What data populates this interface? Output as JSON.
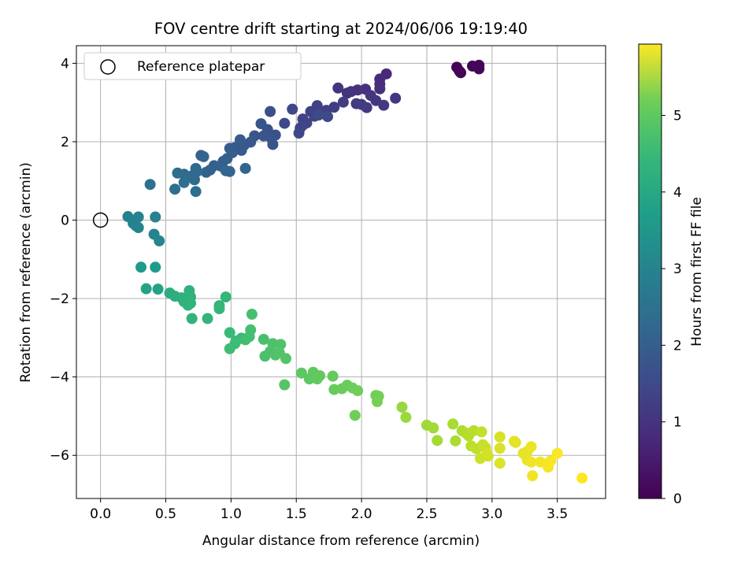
{
  "chart_data": {
    "type": "scatter",
    "title": "FOV centre drift starting at 2024/06/06 19:19:40",
    "xlabel": "Angular distance from reference (arcmin)",
    "ylabel": "Rotation from reference (arcmin)",
    "colorbar_label": "Hours from first FF file",
    "xlim": [
      -0.185,
      3.87
    ],
    "ylim": [
      -7.1,
      4.45
    ],
    "xticks": [
      "0.0",
      "0.5",
      "1.0",
      "1.5",
      "2.0",
      "2.5",
      "3.0",
      "3.5"
    ],
    "yticks": [
      "−6",
      "−4",
      "−2",
      "0",
      "2",
      "4"
    ],
    "colorbar_range": [
      0,
      5.93
    ],
    "colorbar_ticks": [
      "0",
      "1",
      "2",
      "3",
      "4",
      "5"
    ],
    "colormap": "viridis",
    "grid": true,
    "legend": {
      "position": "top-left",
      "label": "Reference platepar"
    },
    "reference_point": {
      "x": 0.0,
      "y": 0.0
    },
    "points": [
      {
        "x": 2.73,
        "y": 3.9,
        "t": 0.05
      },
      {
        "x": 2.75,
        "y": 3.8,
        "t": 0.06
      },
      {
        "x": 2.76,
        "y": 3.76,
        "t": 0.07
      },
      {
        "x": 2.85,
        "y": 3.93,
        "t": 0.08
      },
      {
        "x": 2.9,
        "y": 3.95,
        "t": 0.09
      },
      {
        "x": 2.9,
        "y": 3.86,
        "t": 0.1
      },
      {
        "x": 2.19,
        "y": 3.73,
        "t": 0.7
      },
      {
        "x": 2.14,
        "y": 3.6,
        "t": 0.72
      },
      {
        "x": 2.14,
        "y": 3.47,
        "t": 0.75
      },
      {
        "x": 2.14,
        "y": 3.35,
        "t": 0.8
      },
      {
        "x": 2.03,
        "y": 3.34,
        "t": 0.82
      },
      {
        "x": 1.97,
        "y": 3.32,
        "t": 0.85
      },
      {
        "x": 1.92,
        "y": 3.28,
        "t": 0.88
      },
      {
        "x": 1.89,
        "y": 3.24,
        "t": 0.9
      },
      {
        "x": 1.82,
        "y": 3.37,
        "t": 0.92
      },
      {
        "x": 2.07,
        "y": 3.18,
        "t": 0.94
      },
      {
        "x": 2.11,
        "y": 3.05,
        "t": 0.96
      },
      {
        "x": 2.26,
        "y": 3.11,
        "t": 0.98
      },
      {
        "x": 2.17,
        "y": 2.93,
        "t": 1.0
      },
      {
        "x": 2.04,
        "y": 2.87,
        "t": 1.02
      },
      {
        "x": 1.96,
        "y": 2.97,
        "t": 1.04
      },
      {
        "x": 2.0,
        "y": 2.95,
        "t": 1.06
      },
      {
        "x": 1.86,
        "y": 3.01,
        "t": 1.08
      },
      {
        "x": 1.79,
        "y": 2.88,
        "t": 1.1
      },
      {
        "x": 1.73,
        "y": 2.8,
        "t": 1.12
      },
      {
        "x": 1.69,
        "y": 2.74,
        "t": 1.14
      },
      {
        "x": 1.66,
        "y": 2.92,
        "t": 1.15
      },
      {
        "x": 1.61,
        "y": 2.77,
        "t": 1.17
      },
      {
        "x": 1.64,
        "y": 2.65,
        "t": 1.18
      },
      {
        "x": 1.55,
        "y": 2.58,
        "t": 1.2
      },
      {
        "x": 1.58,
        "y": 2.48,
        "t": 1.22
      },
      {
        "x": 1.53,
        "y": 2.35,
        "t": 1.24
      },
      {
        "x": 1.55,
        "y": 2.42,
        "t": 1.26
      },
      {
        "x": 1.52,
        "y": 2.22,
        "t": 1.28
      },
      {
        "x": 1.47,
        "y": 2.83,
        "t": 1.3
      },
      {
        "x": 1.41,
        "y": 2.47,
        "t": 1.32
      },
      {
        "x": 1.74,
        "y": 2.64,
        "t": 1.34
      },
      {
        "x": 1.67,
        "y": 2.68,
        "t": 1.36
      },
      {
        "x": 1.3,
        "y": 2.77,
        "t": 1.45
      },
      {
        "x": 1.34,
        "y": 2.17,
        "t": 1.48
      },
      {
        "x": 1.28,
        "y": 2.31,
        "t": 1.5
      },
      {
        "x": 1.31,
        "y": 2.08,
        "t": 1.52
      },
      {
        "x": 1.32,
        "y": 1.93,
        "t": 1.54
      },
      {
        "x": 1.23,
        "y": 2.46,
        "t": 1.56
      },
      {
        "x": 1.25,
        "y": 2.15,
        "t": 1.58
      },
      {
        "x": 1.18,
        "y": 2.15,
        "t": 1.6
      },
      {
        "x": 1.15,
        "y": 1.99,
        "t": 1.62
      },
      {
        "x": 1.1,
        "y": 1.91,
        "t": 1.64
      },
      {
        "x": 1.08,
        "y": 1.78,
        "t": 1.66
      },
      {
        "x": 1.03,
        "y": 1.85,
        "t": 1.68
      },
      {
        "x": 1.07,
        "y": 2.05,
        "t": 1.7
      },
      {
        "x": 0.99,
        "y": 1.83,
        "t": 1.72
      },
      {
        "x": 1.01,
        "y": 1.72,
        "t": 1.74
      },
      {
        "x": 0.97,
        "y": 1.57,
        "t": 1.76
      },
      {
        "x": 0.94,
        "y": 1.5,
        "t": 1.78
      },
      {
        "x": 0.92,
        "y": 1.38,
        "t": 1.8
      },
      {
        "x": 0.87,
        "y": 1.39,
        "t": 1.82
      },
      {
        "x": 0.84,
        "y": 1.28,
        "t": 1.84
      },
      {
        "x": 0.81,
        "y": 1.22,
        "t": 1.86
      },
      {
        "x": 0.77,
        "y": 1.65,
        "t": 1.88
      },
      {
        "x": 0.79,
        "y": 1.62,
        "t": 1.9
      },
      {
        "x": 1.11,
        "y": 1.32,
        "t": 1.92
      },
      {
        "x": 0.99,
        "y": 1.24,
        "t": 1.94
      },
      {
        "x": 0.96,
        "y": 1.26,
        "t": 1.96
      },
      {
        "x": 0.73,
        "y": 1.32,
        "t": 2.0
      },
      {
        "x": 0.74,
        "y": 1.24,
        "t": 2.02
      },
      {
        "x": 0.7,
        "y": 1.13,
        "t": 2.04
      },
      {
        "x": 0.72,
        "y": 1.03,
        "t": 2.06
      },
      {
        "x": 0.64,
        "y": 1.17,
        "t": 2.08
      },
      {
        "x": 0.59,
        "y": 1.2,
        "t": 2.1
      },
      {
        "x": 0.64,
        "y": 0.96,
        "t": 2.12
      },
      {
        "x": 0.57,
        "y": 0.79,
        "t": 2.14
      },
      {
        "x": 0.73,
        "y": 0.73,
        "t": 2.16
      },
      {
        "x": 0.38,
        "y": 0.91,
        "t": 2.2
      },
      {
        "x": 0.42,
        "y": 0.08,
        "t": 2.6
      },
      {
        "x": 0.21,
        "y": 0.09,
        "t": 2.62
      },
      {
        "x": 0.29,
        "y": 0.08,
        "t": 2.63
      },
      {
        "x": 0.25,
        "y": -0.08,
        "t": 2.64
      },
      {
        "x": 0.27,
        "y": -0.14,
        "t": 2.65
      },
      {
        "x": 0.29,
        "y": -0.19,
        "t": 2.66
      },
      {
        "x": 0.41,
        "y": -0.36,
        "t": 2.68
      },
      {
        "x": 0.45,
        "y": -0.53,
        "t": 2.7
      },
      {
        "x": 0.31,
        "y": -1.2,
        "t": 3.2
      },
      {
        "x": 0.42,
        "y": -1.2,
        "t": 3.22
      },
      {
        "x": 0.35,
        "y": -1.75,
        "t": 3.4
      },
      {
        "x": 0.44,
        "y": -1.76,
        "t": 3.42
      },
      {
        "x": 0.53,
        "y": -1.86,
        "t": 3.7
      },
      {
        "x": 0.57,
        "y": -1.94,
        "t": 3.72
      },
      {
        "x": 0.62,
        "y": -1.98,
        "t": 3.74
      },
      {
        "x": 0.64,
        "y": -2.08,
        "t": 3.76
      },
      {
        "x": 0.68,
        "y": -1.8,
        "t": 3.78
      },
      {
        "x": 0.69,
        "y": -1.96,
        "t": 3.8
      },
      {
        "x": 0.67,
        "y": -2.17,
        "t": 3.82
      },
      {
        "x": 0.69,
        "y": -2.12,
        "t": 3.84
      },
      {
        "x": 0.7,
        "y": -2.51,
        "t": 3.86
      },
      {
        "x": 0.82,
        "y": -2.51,
        "t": 3.88
      },
      {
        "x": 0.91,
        "y": -2.18,
        "t": 3.9
      },
      {
        "x": 0.91,
        "y": -2.26,
        "t": 3.92
      },
      {
        "x": 0.96,
        "y": -1.96,
        "t": 3.94
      },
      {
        "x": 0.99,
        "y": -2.87,
        "t": 4.0
      },
      {
        "x": 1.04,
        "y": -3.08,
        "t": 4.02
      },
      {
        "x": 1.08,
        "y": -3.01,
        "t": 4.04
      },
      {
        "x": 1.03,
        "y": -3.15,
        "t": 4.06
      },
      {
        "x": 0.99,
        "y": -3.28,
        "t": 4.08
      },
      {
        "x": 1.11,
        "y": -3.05,
        "t": 4.1
      },
      {
        "x": 1.14,
        "y": -2.97,
        "t": 4.12
      },
      {
        "x": 1.15,
        "y": -2.8,
        "t": 4.14
      },
      {
        "x": 1.16,
        "y": -2.4,
        "t": 4.16
      },
      {
        "x": 1.25,
        "y": -3.04,
        "t": 4.18
      },
      {
        "x": 1.26,
        "y": -3.47,
        "t": 4.2
      },
      {
        "x": 1.3,
        "y": -3.35,
        "t": 4.22
      },
      {
        "x": 1.32,
        "y": -3.15,
        "t": 4.24
      },
      {
        "x": 1.34,
        "y": -3.44,
        "t": 4.26
      },
      {
        "x": 1.38,
        "y": -3.17,
        "t": 4.28
      },
      {
        "x": 1.37,
        "y": -3.38,
        "t": 4.3
      },
      {
        "x": 1.42,
        "y": -3.53,
        "t": 4.32
      },
      {
        "x": 1.41,
        "y": -4.2,
        "t": 4.34
      },
      {
        "x": 1.54,
        "y": -3.9,
        "t": 4.4
      },
      {
        "x": 1.6,
        "y": -4.05,
        "t": 4.42
      },
      {
        "x": 1.63,
        "y": -3.88,
        "t": 4.44
      },
      {
        "x": 1.66,
        "y": -4.05,
        "t": 4.46
      },
      {
        "x": 1.68,
        "y": -3.97,
        "t": 4.48
      },
      {
        "x": 1.78,
        "y": -3.98,
        "t": 4.5
      },
      {
        "x": 1.79,
        "y": -4.32,
        "t": 4.52
      },
      {
        "x": 1.85,
        "y": -4.3,
        "t": 4.54
      },
      {
        "x": 1.89,
        "y": -4.21,
        "t": 4.56
      },
      {
        "x": 1.93,
        "y": -4.28,
        "t": 4.58
      },
      {
        "x": 1.97,
        "y": -4.35,
        "t": 4.6
      },
      {
        "x": 1.95,
        "y": -4.98,
        "t": 4.62
      },
      {
        "x": 2.11,
        "y": -4.47,
        "t": 4.64
      },
      {
        "x": 2.13,
        "y": -4.49,
        "t": 4.66
      },
      {
        "x": 2.12,
        "y": -4.63,
        "t": 4.68
      },
      {
        "x": 2.31,
        "y": -4.77,
        "t": 5.0
      },
      {
        "x": 2.34,
        "y": -5.03,
        "t": 5.03
      },
      {
        "x": 2.5,
        "y": -5.23,
        "t": 5.06
      },
      {
        "x": 2.55,
        "y": -5.3,
        "t": 5.09
      },
      {
        "x": 2.58,
        "y": -5.62,
        "t": 5.12
      },
      {
        "x": 2.7,
        "y": -5.2,
        "t": 5.15
      },
      {
        "x": 2.72,
        "y": -5.63,
        "t": 5.18
      },
      {
        "x": 2.77,
        "y": -5.37,
        "t": 5.21
      },
      {
        "x": 2.8,
        "y": -5.43,
        "t": 5.24
      },
      {
        "x": 2.82,
        "y": -5.5,
        "t": 5.27
      },
      {
        "x": 2.86,
        "y": -5.37,
        "t": 5.3
      },
      {
        "x": 2.84,
        "y": -5.76,
        "t": 5.33
      },
      {
        "x": 2.88,
        "y": -5.83,
        "t": 5.36
      },
      {
        "x": 2.92,
        "y": -5.4,
        "t": 5.39
      },
      {
        "x": 2.93,
        "y": -5.73,
        "t": 5.42
      },
      {
        "x": 2.95,
        "y": -5.8,
        "t": 5.45
      },
      {
        "x": 2.91,
        "y": -6.08,
        "t": 5.48
      },
      {
        "x": 2.97,
        "y": -6.02,
        "t": 5.51
      },
      {
        "x": 2.96,
        "y": -5.95,
        "t": 5.54
      },
      {
        "x": 3.06,
        "y": -5.53,
        "t": 5.57
      },
      {
        "x": 3.06,
        "y": -5.82,
        "t": 5.6
      },
      {
        "x": 3.06,
        "y": -6.2,
        "t": 5.63
      },
      {
        "x": 3.18,
        "y": -5.67,
        "t": 5.66
      },
      {
        "x": 3.17,
        "y": -5.64,
        "t": 5.68
      },
      {
        "x": 3.24,
        "y": -5.95,
        "t": 5.7
      },
      {
        "x": 3.27,
        "y": -5.9,
        "t": 5.72
      },
      {
        "x": 3.27,
        "y": -6.12,
        "t": 5.74
      },
      {
        "x": 3.3,
        "y": -5.78,
        "t": 5.76
      },
      {
        "x": 3.3,
        "y": -6.17,
        "t": 5.78
      },
      {
        "x": 3.31,
        "y": -6.52,
        "t": 5.8
      },
      {
        "x": 3.37,
        "y": -6.17,
        "t": 5.82
      },
      {
        "x": 3.43,
        "y": -6.3,
        "t": 5.84
      },
      {
        "x": 3.45,
        "y": -6.14,
        "t": 5.86
      },
      {
        "x": 3.43,
        "y": -6.2,
        "t": 5.88
      },
      {
        "x": 3.5,
        "y": -5.95,
        "t": 5.9
      },
      {
        "x": 3.69,
        "y": -6.58,
        "t": 5.93
      }
    ]
  }
}
